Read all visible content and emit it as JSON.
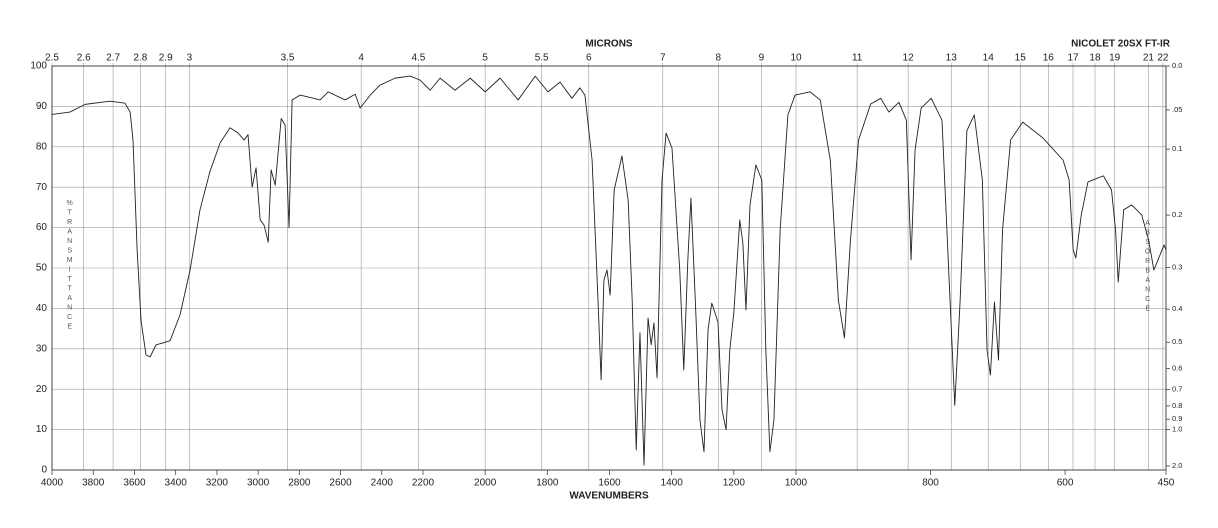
{
  "chart_data": {
    "type": "line",
    "title": "NICOLET 20SX FT-IR",
    "x_label": "WAVENUMBERS",
    "x2_label": "MICRONS",
    "y_label": "%TRANSMITTANCE",
    "y2_label": "ABSORBANCE",
    "color": "#222222",
    "grid": true,
    "xlim": [
      4000,
      450
    ],
    "x_breaks": [
      2200,
      1000
    ],
    "xticks": [
      4000,
      3800,
      3600,
      3400,
      3200,
      3000,
      2800,
      2600,
      2400,
      2200,
      2000,
      1800,
      1600,
      1400,
      1200,
      1000,
      800,
      600,
      450
    ],
    "x2ticks": [
      2.5,
      2.6,
      2.7,
      2.8,
      2.9,
      3,
      3.5,
      4,
      4.5,
      5,
      5.5,
      6,
      7,
      8,
      9,
      10,
      11,
      12,
      13,
      14,
      15,
      16,
      17,
      18,
      19,
      21,
      22
    ],
    "ylim": [
      0,
      100
    ],
    "yticks": [
      0,
      10,
      20,
      30,
      40,
      50,
      60,
      70,
      80,
      90,
      100
    ],
    "y2ticks": [
      {
        "value": 0,
        "label": "0.0"
      },
      {
        "value": 0.05,
        "label": ".05"
      },
      0.1,
      0.2,
      0.3,
      0.4,
      0.5,
      0.6,
      0.7,
      0.8,
      0.9,
      {
        "value": 1,
        "label": "1.0"
      },
      {
        "value": 2,
        "label": "2.0"
      }
    ],
    "x": [
      4000,
      3913,
      3840,
      3718,
      3646,
      3621,
      3607,
      3587,
      3568,
      3544,
      3524,
      3495,
      3466,
      3427,
      3379,
      3330,
      3282,
      3233,
      3184,
      3136,
      3097,
      3068,
      3049,
      3029,
      3010,
      2990,
      2971,
      2951,
      2937,
      2917,
      2888,
      2869,
      2850,
      2835,
      2796,
      2699,
      2660,
      2578,
      2529,
      2505,
      2456,
      2408,
      2335,
      2262,
      2214,
      2177,
      2145,
      2097,
      2048,
      2000,
      1952,
      1894,
      1839,
      1798,
      1759,
      1721,
      1695,
      1679,
      1656,
      1637,
      1627,
      1618,
      1608,
      1598,
      1585,
      1560,
      1540,
      1527,
      1514,
      1502,
      1489,
      1476,
      1466,
      1457,
      1447,
      1431,
      1418,
      1399,
      1374,
      1361,
      1348,
      1338,
      1322,
      1309,
      1296,
      1283,
      1271,
      1251,
      1238,
      1225,
      1213,
      1200,
      1181,
      1171,
      1161,
      1148,
      1129,
      1110,
      1097,
      1084,
      1071,
      1051,
      1026,
      1003,
      979,
      964,
      949,
      937,
      928,
      919,
      907,
      889,
      874,
      862,
      847,
      836,
      829,
      823,
      814,
      799,
      783,
      771,
      764,
      756,
      746,
      735,
      723,
      716,
      711,
      705,
      699,
      693,
      681,
      663,
      633,
      603,
      594,
      588,
      584,
      576,
      566,
      551,
      543,
      531,
      525,
      521,
      513,
      501,
      486,
      476,
      468,
      459,
      453,
      450
    ],
    "values": [
      88,
      88.6,
      90.5,
      91.3,
      90.8,
      88.6,
      81.7,
      54.5,
      37,
      28.5,
      28,
      31,
      31.4,
      32,
      38.4,
      49.5,
      64.4,
      74,
      81,
      84.7,
      83.4,
      81.7,
      83,
      70,
      74.8,
      61.9,
      60.6,
      56.4,
      74.3,
      70.5,
      87,
      85.4,
      60,
      91.6,
      92.8,
      91.6,
      93.6,
      91.6,
      93,
      89.6,
      92.8,
      95.3,
      97,
      97.5,
      96.5,
      94,
      97,
      94,
      97,
      93.6,
      97,
      91.6,
      97.5,
      93.6,
      96,
      92,
      94.6,
      92.8,
      76.7,
      42,
      22.3,
      47,
      49.5,
      43.3,
      69.3,
      77.7,
      66.8,
      42,
      5,
      34,
      1.2,
      37.6,
      31,
      36.4,
      22.8,
      71.8,
      83.4,
      79.7,
      49.5,
      24.8,
      52,
      67.3,
      38.4,
      12.4,
      4.5,
      34.7,
      41.3,
      36.6,
      14.9,
      10,
      29.7,
      38.9,
      61.9,
      56.2,
      39.6,
      65.6,
      75.5,
      71.8,
      29.7,
      4.5,
      12.4,
      59.4,
      87.9,
      92.8,
      93.6,
      91.6,
      76.7,
      42,
      32.7,
      57,
      81.7,
      90.6,
      92,
      88.6,
      91,
      86.6,
      52,
      79.2,
      89.6,
      92,
      86.6,
      42,
      16,
      42,
      84,
      87.9,
      71.8,
      29.7,
      23.5,
      41.6,
      27.2,
      59.4,
      81.7,
      86.1,
      82.2,
      76.7,
      71.8,
      54.5,
      52.5,
      63.1,
      71.3,
      72.3,
      72.8,
      69.3,
      59.4,
      46.5,
      64.4,
      65.6,
      63.1,
      57,
      49.5,
      53.2,
      55.7,
      54.5
    ]
  }
}
